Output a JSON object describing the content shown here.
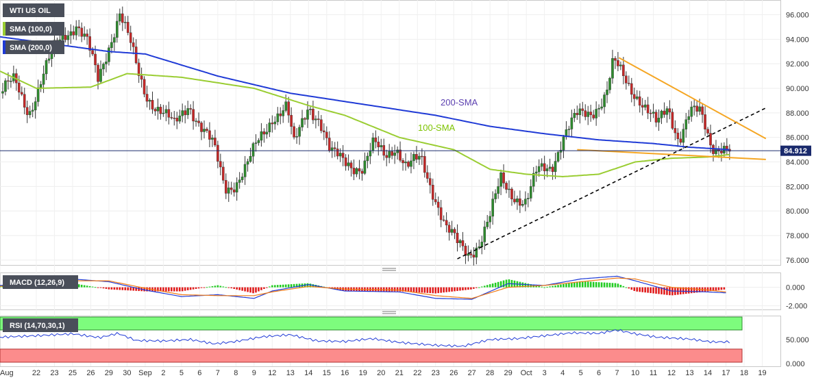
{
  "chart_data": {
    "type": "candlestick",
    "symbol": "WTI US OIL",
    "indicators": {
      "sma_fast": "SMA (100,0)",
      "sma_slow": "SMA (200,0)",
      "macd": "MACD (12,26,9)",
      "rsi": "RSI (14,70,30,1)"
    },
    "annotations": {
      "sma200": "200-SMA",
      "sma100": "100-SMA"
    },
    "current_price": {
      "label": "84.912",
      "value": 84.912
    },
    "x_labels": [
      {
        "t": 0,
        "label": "Aug"
      },
      {
        "t": 20,
        "label": "22"
      },
      {
        "t": 30,
        "label": "23"
      },
      {
        "t": 40,
        "label": "25"
      },
      {
        "t": 50,
        "label": "26"
      },
      {
        "t": 60,
        "label": "29"
      },
      {
        "t": 70,
        "label": "30"
      },
      {
        "t": 80,
        "label": "Sep"
      },
      {
        "t": 90,
        "label": "2"
      },
      {
        "t": 100,
        "label": "5"
      },
      {
        "t": 110,
        "label": "6"
      },
      {
        "t": 120,
        "label": "7"
      },
      {
        "t": 130,
        "label": "8"
      },
      {
        "t": 140,
        "label": "9"
      },
      {
        "t": 150,
        "label": "12"
      },
      {
        "t": 160,
        "label": "13"
      },
      {
        "t": 170,
        "label": "14"
      },
      {
        "t": 180,
        "label": "15"
      },
      {
        "t": 190,
        "label": "16"
      },
      {
        "t": 200,
        "label": "19"
      },
      {
        "t": 210,
        "label": "20"
      },
      {
        "t": 220,
        "label": "21"
      },
      {
        "t": 230,
        "label": "22"
      },
      {
        "t": 240,
        "label": "23"
      },
      {
        "t": 250,
        "label": "26"
      },
      {
        "t": 260,
        "label": "27"
      },
      {
        "t": 270,
        "label": "28"
      },
      {
        "t": 280,
        "label": "29"
      },
      {
        "t": 290,
        "label": "Oct"
      },
      {
        "t": 300,
        "label": "3"
      },
      {
        "t": 310,
        "label": "4"
      },
      {
        "t": 320,
        "label": "5"
      },
      {
        "t": 330,
        "label": "6"
      },
      {
        "t": 340,
        "label": "7"
      },
      {
        "t": 350,
        "label": "10"
      },
      {
        "t": 360,
        "label": "11"
      },
      {
        "t": 370,
        "label": "12"
      },
      {
        "t": 380,
        "label": "13"
      },
      {
        "t": 390,
        "label": "14"
      },
      {
        "t": 400,
        "label": "17"
      },
      {
        "t": 410,
        "label": "18"
      },
      {
        "t": 420,
        "label": "19"
      }
    ],
    "price_axis": {
      "range": [
        75.6,
        97.2
      ],
      "ticks": [
        76,
        78,
        80,
        82,
        84,
        86,
        88,
        90,
        92,
        94,
        96
      ],
      "tick_labels": [
        "76.000",
        "78.000",
        "80.000",
        "82.000",
        "84.000",
        "86.000",
        "88.000",
        "90.000",
        "92.000",
        "94.000",
        "96.000"
      ]
    },
    "macd_axis": {
      "range": [
        -2.4,
        1.6
      ],
      "ticks": [
        0,
        -2
      ],
      "tick_labels": [
        "0.000",
        "-2.000"
      ]
    },
    "rsi_axis": {
      "range": [
        -6,
        100
      ],
      "ticks": [
        50,
        0
      ],
      "tick_labels": [
        "50.000",
        "0.000"
      ],
      "overbought": 70,
      "oversold": 30
    },
    "price_anchors": [
      [
        0,
        89.6
      ],
      [
        8,
        90.5
      ],
      [
        16,
        88.2
      ],
      [
        24,
        91.0
      ],
      [
        30,
        93.2
      ],
      [
        36,
        94.6
      ],
      [
        42,
        95.3
      ],
      [
        48,
        93.6
      ],
      [
        54,
        90.6
      ],
      [
        60,
        93.6
      ],
      [
        66,
        96.2
      ],
      [
        72,
        93.4
      ],
      [
        76,
        91.2
      ],
      [
        80,
        89.7
      ],
      [
        88,
        88.3
      ],
      [
        96,
        86.8
      ],
      [
        104,
        88.9
      ],
      [
        112,
        86.5
      ],
      [
        118,
        85.0
      ],
      [
        124,
        82.0
      ],
      [
        130,
        82.4
      ],
      [
        136,
        83.5
      ],
      [
        142,
        85.5
      ],
      [
        150,
        87.8
      ],
      [
        158,
        88.4
      ],
      [
        162,
        85.2
      ],
      [
        170,
        88.8
      ],
      [
        176,
        87.5
      ],
      [
        182,
        84.5
      ],
      [
        192,
        84.1
      ],
      [
        200,
        83.4
      ],
      [
        206,
        85.3
      ],
      [
        212,
        84.6
      ],
      [
        218,
        85.5
      ],
      [
        224,
        83.4
      ],
      [
        232,
        84.2
      ],
      [
        240,
        81.2
      ],
      [
        246,
        78.5
      ],
      [
        252,
        77.2
      ],
      [
        258,
        76.6
      ],
      [
        264,
        77.5
      ],
      [
        270,
        79.4
      ],
      [
        276,
        82.5
      ],
      [
        282,
        81.6
      ],
      [
        290,
        80.6
      ],
      [
        296,
        83.1
      ],
      [
        304,
        83.8
      ],
      [
        310,
        86.0
      ],
      [
        318,
        87.6
      ],
      [
        326,
        88.2
      ],
      [
        334,
        89.5
      ],
      [
        338,
        92.0
      ],
      [
        342,
        91.2
      ],
      [
        346,
        90.4
      ],
      [
        352,
        89.4
      ],
      [
        358,
        87.8
      ],
      [
        362,
        86.8
      ],
      [
        368,
        88.5
      ],
      [
        374,
        86.0
      ],
      [
        380,
        88.0
      ],
      [
        386,
        87.8
      ],
      [
        392,
        85.4
      ],
      [
        398,
        85.4
      ],
      [
        402,
        84.9
      ]
    ],
    "sma100_anchors": [
      [
        0,
        91.4
      ],
      [
        20,
        90.0
      ],
      [
        50,
        90.1
      ],
      [
        70,
        91.2
      ],
      [
        100,
        90.9
      ],
      [
        140,
        90.0
      ],
      [
        170,
        88.6
      ],
      [
        190,
        87.8
      ],
      [
        220,
        86.0
      ],
      [
        250,
        85.0
      ],
      [
        270,
        83.4
      ],
      [
        290,
        83.0
      ],
      [
        310,
        82.8
      ],
      [
        330,
        83.0
      ],
      [
        350,
        84.0
      ],
      [
        370,
        84.3
      ],
      [
        390,
        84.4
      ],
      [
        402,
        84.6
      ]
    ],
    "sma200_anchors": [
      [
        0,
        94.2
      ],
      [
        30,
        93.6
      ],
      [
        60,
        93.0
      ],
      [
        80,
        92.8
      ],
      [
        120,
        91.0
      ],
      [
        160,
        89.6
      ],
      [
        200,
        88.7
      ],
      [
        240,
        87.8
      ],
      [
        270,
        86.9
      ],
      [
        300,
        86.3
      ],
      [
        330,
        85.8
      ],
      [
        360,
        85.5
      ],
      [
        380,
        85.2
      ],
      [
        402,
        85.0
      ]
    ],
    "trendlines": [
      {
        "name": "ascending-support",
        "style": "dashed",
        "color": "#000000",
        "from": [
          252,
          76.1
        ],
        "to": [
          422,
          88.4
        ]
      },
      {
        "name": "descending-resistance",
        "style": "solid",
        "color": "#f5a623",
        "from": [
          341,
          92.5
        ],
        "to": [
          422,
          85.9
        ]
      },
      {
        "name": "lower-support",
        "style": "solid",
        "color": "#f5a623",
        "from": [
          318,
          85.0
        ],
        "to": [
          422,
          84.2
        ]
      }
    ],
    "macd_line_anchors": [
      [
        0,
        0.2
      ],
      [
        20,
        0.5
      ],
      [
        40,
        0.9
      ],
      [
        60,
        0.6
      ],
      [
        80,
        -0.3
      ],
      [
        100,
        -1.0
      ],
      [
        120,
        -0.8
      ],
      [
        140,
        -1.2
      ],
      [
        150,
        -0.4
      ],
      [
        170,
        0.3
      ],
      [
        190,
        -0.4
      ],
      [
        220,
        -0.5
      ],
      [
        240,
        -1.2
      ],
      [
        260,
        -1.3
      ],
      [
        280,
        0.4
      ],
      [
        300,
        0.2
      ],
      [
        320,
        0.9
      ],
      [
        340,
        1.2
      ],
      [
        350,
        0.7
      ],
      [
        370,
        -0.4
      ],
      [
        390,
        -0.5
      ],
      [
        400,
        -0.6
      ]
    ],
    "macd_signal_anchors": [
      [
        0,
        0.1
      ],
      [
        20,
        0.3
      ],
      [
        40,
        0.7
      ],
      [
        60,
        0.7
      ],
      [
        80,
        -0.1
      ],
      [
        100,
        -0.8
      ],
      [
        120,
        -0.9
      ],
      [
        140,
        -0.9
      ],
      [
        150,
        -0.5
      ],
      [
        170,
        0.1
      ],
      [
        190,
        -0.2
      ],
      [
        220,
        -0.3
      ],
      [
        240,
        -0.9
      ],
      [
        260,
        -1.2
      ],
      [
        280,
        0.0
      ],
      [
        300,
        0.2
      ],
      [
        320,
        0.6
      ],
      [
        340,
        1.0
      ],
      [
        350,
        0.9
      ],
      [
        370,
        0.0
      ],
      [
        390,
        -0.3
      ],
      [
        400,
        -0.5
      ]
    ],
    "rsi_anchors": [
      [
        0,
        55
      ],
      [
        20,
        58
      ],
      [
        40,
        62
      ],
      [
        55,
        54
      ],
      [
        65,
        63
      ],
      [
        75,
        48
      ],
      [
        90,
        47
      ],
      [
        105,
        50
      ],
      [
        118,
        41
      ],
      [
        130,
        46
      ],
      [
        145,
        56
      ],
      [
        160,
        60
      ],
      [
        175,
        47
      ],
      [
        190,
        46
      ],
      [
        205,
        52
      ],
      [
        220,
        44
      ],
      [
        240,
        38
      ],
      [
        255,
        36
      ],
      [
        270,
        50
      ],
      [
        285,
        52
      ],
      [
        300,
        58
      ],
      [
        315,
        64
      ],
      [
        330,
        63
      ],
      [
        340,
        70
      ],
      [
        350,
        62
      ],
      [
        362,
        55
      ],
      [
        380,
        51
      ],
      [
        392,
        45
      ],
      [
        402,
        45
      ]
    ]
  }
}
